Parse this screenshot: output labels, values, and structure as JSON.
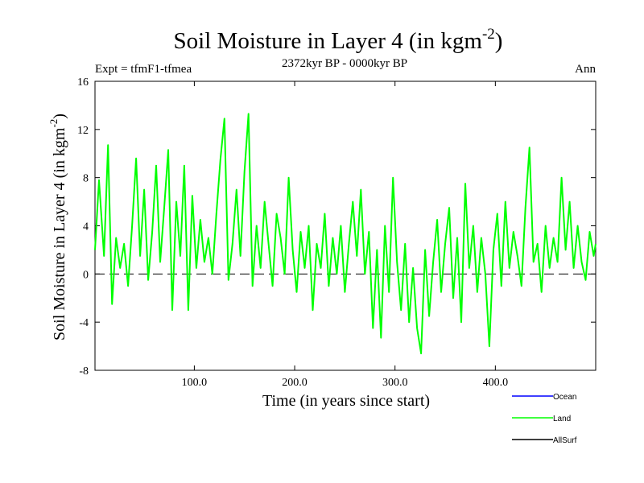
{
  "chart_data": {
    "type": "line",
    "title": "Soil Moisture in Layer 4 (in kgm",
    "title_sup": "-2",
    "title_end": ")",
    "subtitle_left": "Expt = tfmF1-tfmea",
    "subtitle_center": "2372kyr BP - 0000kyr BP",
    "subtitle_right": "Ann",
    "xlabel": "Time (in years since start)",
    "ylabel": "Soil Moisture in Layer 4 (in kgm",
    "ylabel_sup": "-2",
    "ylabel_end": ")",
    "xlim": [
      1,
      500
    ],
    "ylim": [
      -8,
      16
    ],
    "xticks": [
      100,
      200,
      300,
      400
    ],
    "xtick_labels": [
      "100.0",
      "200.0",
      "300.0",
      "400.0"
    ],
    "yticks": [
      -8,
      -4,
      0,
      4,
      8,
      12,
      16
    ],
    "ytick_labels": [
      "-8",
      "-4",
      "0",
      "4",
      "8",
      "12",
      "16"
    ],
    "zero_line": 0,
    "legend": [
      {
        "name": "Ocean",
        "color": "#0000ff"
      },
      {
        "name": "Land",
        "color": "#00ff00"
      },
      {
        "name": "AllSurf",
        "color": "#000000"
      }
    ],
    "series": [
      {
        "name": "Land",
        "color": "#00ff00",
        "x": [
          1,
          5,
          10,
          14,
          18,
          22,
          26,
          30,
          34,
          38,
          42,
          46,
          50,
          54,
          58,
          62,
          66,
          70,
          74,
          78,
          82,
          86,
          90,
          94,
          98,
          102,
          106,
          110,
          114,
          118,
          122,
          126,
          130,
          134,
          138,
          142,
          146,
          150,
          154,
          158,
          162,
          166,
          170,
          174,
          178,
          182,
          186,
          190,
          194,
          198,
          202,
          206,
          210,
          214,
          218,
          222,
          226,
          230,
          234,
          238,
          242,
          246,
          250,
          254,
          258,
          262,
          266,
          270,
          274,
          278,
          282,
          286,
          290,
          294,
          298,
          302,
          306,
          310,
          314,
          318,
          322,
          326,
          330,
          334,
          338,
          342,
          346,
          350,
          354,
          358,
          362,
          366,
          370,
          374,
          378,
          382,
          386,
          390,
          394,
          398,
          402,
          406,
          410,
          414,
          418,
          422,
          426,
          430,
          434,
          438,
          442,
          446,
          450,
          454,
          458,
          462,
          466,
          470,
          474,
          478,
          482,
          486,
          490,
          494,
          498,
          500
        ],
        "values": [
          2.0,
          7.8,
          1.5,
          10.7,
          -2.5,
          3.0,
          0.5,
          2.5,
          -1.0,
          4.0,
          9.6,
          1.5,
          7.0,
          -0.5,
          3.5,
          9.0,
          1.0,
          5.5,
          10.3,
          -3.0,
          6.0,
          1.5,
          9.0,
          -3.0,
          6.5,
          0.5,
          4.5,
          1.0,
          3.0,
          0.0,
          5.0,
          9.5,
          12.9,
          -0.5,
          2.5,
          7.0,
          1.5,
          8.5,
          13.3,
          -1.0,
          4.0,
          0.5,
          6.0,
          2.5,
          -1.0,
          5.0,
          3.0,
          0.0,
          8.0,
          2.0,
          -1.5,
          3.5,
          0.5,
          4.0,
          -3.0,
          2.5,
          0.5,
          5.0,
          -1.0,
          3.0,
          0.0,
          4.0,
          -1.5,
          2.5,
          6.0,
          1.5,
          7.0,
          0.0,
          3.5,
          -4.5,
          2.0,
          -5.3,
          4.0,
          -1.5,
          8.0,
          1.0,
          -3.0,
          2.5,
          -4.0,
          0.5,
          -4.5,
          -6.6,
          2.0,
          -3.5,
          1.0,
          4.5,
          -1.5,
          2.5,
          5.5,
          -2.0,
          3.0,
          -4.0,
          7.5,
          0.5,
          4.0,
          -1.5,
          3.0,
          0.0,
          -6.0,
          2.0,
          5.0,
          -1.0,
          6.0,
          0.5,
          3.5,
          1.5,
          -1.0,
          5.5,
          10.5,
          1.0,
          2.5,
          -1.5,
          4.0,
          0.5,
          3.0,
          1.0,
          8.0,
          2.0,
          6.0,
          0.5,
          4.0,
          1.0,
          -0.5,
          3.5,
          1.5,
          2.5
        ]
      }
    ]
  }
}
